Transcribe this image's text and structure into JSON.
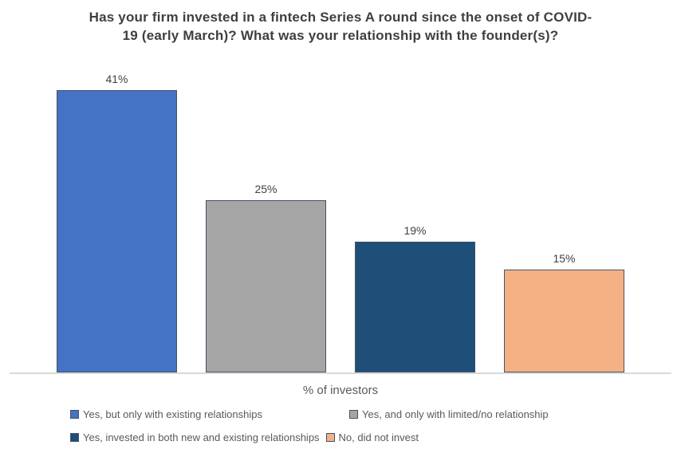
{
  "chart_data": {
    "type": "bar",
    "title": "Has your firm invested in a fintech Series A round since the onset of COVID-19 (early March)? What was your relationship with the founder(s)?",
    "title_lines": [
      "Has your firm invested in a fintech Series A round since the onset of COVID-",
      "19 (early March)? What was your relationship with the founder(s)?"
    ],
    "xlabel": "% of investors",
    "ylabel": "",
    "categories": [
      "Yes, but only with existing relationships",
      "Yes, and only with limited/no relationship",
      "Yes, invested in both new and existing relationships",
      "No, did not invest"
    ],
    "values": [
      41,
      25,
      19,
      15
    ],
    "value_labels": [
      "41%",
      "25%",
      "19%",
      "15%"
    ],
    "colors": [
      "#4472C4",
      "#A5A5A5",
      "#1F4E79",
      "#F4B183"
    ],
    "bar_border_color": "#44546A",
    "axis_line_color": "#D9D9D9",
    "ylim": [
      0,
      45
    ],
    "grid": false,
    "legend_position": "bottom",
    "legend_rows": [
      [
        0,
        1
      ],
      [
        2,
        3
      ]
    ]
  }
}
